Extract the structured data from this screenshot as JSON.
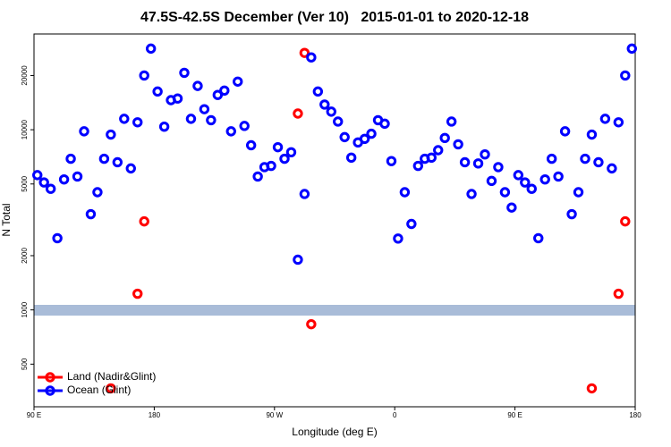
{
  "chart_data": {
    "type": "scatter",
    "title": "47.5S-42.5S December (Ver 10)   2015-01-01 to 2020-12-18",
    "x_label": "Longitude (deg E)",
    "y_label": "N Total",
    "xlim": [
      90,
      540
    ],
    "ylim": [
      290,
      34000
    ],
    "log_y": true,
    "xticks": [
      {
        "value": 90,
        "label": "90 E"
      },
      {
        "value": 180,
        "label": "180"
      },
      {
        "value": 270,
        "label": "90 W"
      },
      {
        "value": 360,
        "label": "0"
      },
      {
        "value": 450,
        "label": "90 E"
      },
      {
        "value": 540,
        "label": "180"
      }
    ],
    "yticks": [
      500,
      1000,
      2000,
      5000,
      10000,
      20000
    ],
    "legend_position": "bottom-left",
    "series": [
      {
        "name": "Land (Nadir&Glint)",
        "color": "#ff0000",
        "x": [
          147.5,
          167.5,
          172.5,
          287.5,
          292.5,
          297.5,
          507.5,
          527.5,
          532.5
        ],
        "values": [
          367,
          1230,
          3100,
          12300,
          26700,
          833,
          367,
          1230,
          3100
        ]
      },
      {
        "name": "Ocean (Glint)",
        "color": "#0000ff",
        "x": [
          92.5,
          97.5,
          102.5,
          107.5,
          112.5,
          117.5,
          122.5,
          127.5,
          132.5,
          137.5,
          142.5,
          147.5,
          152.5,
          157.5,
          162.5,
          167.5,
          172.5,
          177.5,
          182.5,
          187.5,
          192.5,
          197.5,
          202.5,
          207.5,
          212.5,
          217.5,
          222.5,
          227.5,
          232.5,
          237.5,
          242.5,
          247.5,
          252.5,
          257.5,
          262.5,
          267.5,
          272.5,
          277.5,
          282.5,
          287.5,
          292.5,
          297.5,
          302.5,
          307.5,
          312.5,
          317.5,
          322.5,
          327.5,
          332.5,
          337.5,
          342.5,
          347.5,
          352.5,
          357.5,
          362.5,
          367.5,
          372.5,
          377.5,
          382.5,
          387.5,
          392.5,
          397.5,
          402.5,
          407.5,
          412.5,
          417.5,
          422.5,
          427.5,
          432.5,
          437.5,
          442.5,
          447.5,
          452.5,
          457.5,
          462.5,
          467.5,
          472.5,
          477.5,
          482.5,
          487.5,
          492.5,
          497.5,
          502.5,
          507.5,
          512.5,
          517.5,
          522.5,
          527.5,
          532.5,
          537.5
        ],
        "values": [
          5600,
          5100,
          4700,
          2500,
          5300,
          6900,
          5500,
          9800,
          3400,
          4500,
          6900,
          9400,
          6600,
          11500,
          6100,
          11000,
          20000,
          28200,
          16300,
          10400,
          14600,
          14900,
          20700,
          11500,
          17500,
          13000,
          11300,
          15600,
          16500,
          9800,
          18500,
          10500,
          8200,
          5500,
          6200,
          6300,
          8000,
          6900,
          7500,
          1900,
          4400,
          25200,
          16300,
          13800,
          12600,
          11100,
          9100,
          7000,
          8500,
          8900,
          9500,
          11300,
          10800,
          6700,
          2490,
          4500,
          3000,
          6300,
          6900,
          7000,
          7700,
          9000,
          11100,
          8300,
          6600,
          4400,
          6500,
          7300,
          5200,
          6200,
          4500,
          3700,
          5600,
          5100,
          4700,
          2500,
          5300,
          6900,
          5500,
          9800,
          3400,
          4500,
          6900,
          9400,
          6600,
          11500,
          6100,
          11000,
          20000,
          28200
        ]
      }
    ]
  }
}
